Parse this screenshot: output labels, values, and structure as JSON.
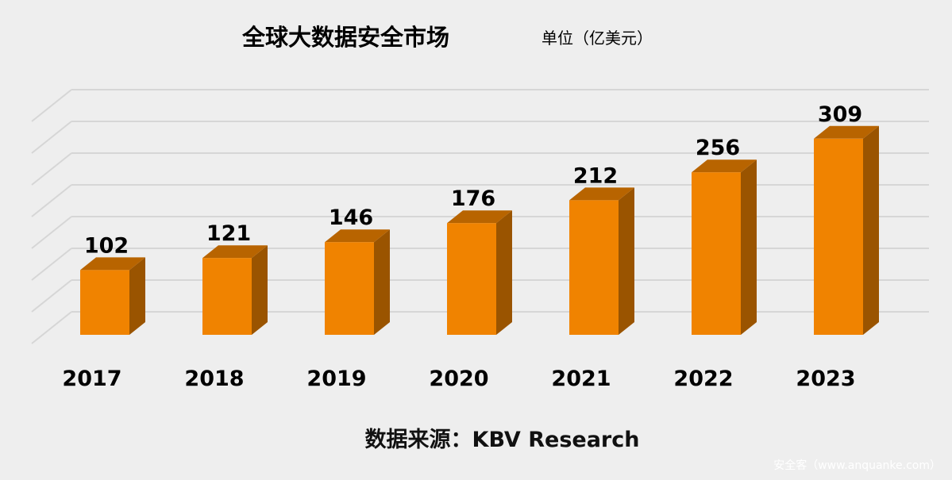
{
  "chart_data": {
    "type": "bar",
    "title": "全球大数据安全市场",
    "unit": "单位（亿美元）",
    "categories": [
      "2017",
      "2018",
      "2019",
      "2020",
      "2021",
      "2022",
      "2023"
    ],
    "values": [
      102,
      121,
      146,
      176,
      212,
      256,
      309
    ],
    "ylim": [
      0,
      350
    ],
    "grid": true,
    "source": "数据来源：KBV Research",
    "colors": {
      "front": "#f08300",
      "top": "#b86400",
      "side": "#9a5400",
      "grid": "#d6d6d6"
    }
  },
  "watermark": "安全客（www.anquanke.com）"
}
